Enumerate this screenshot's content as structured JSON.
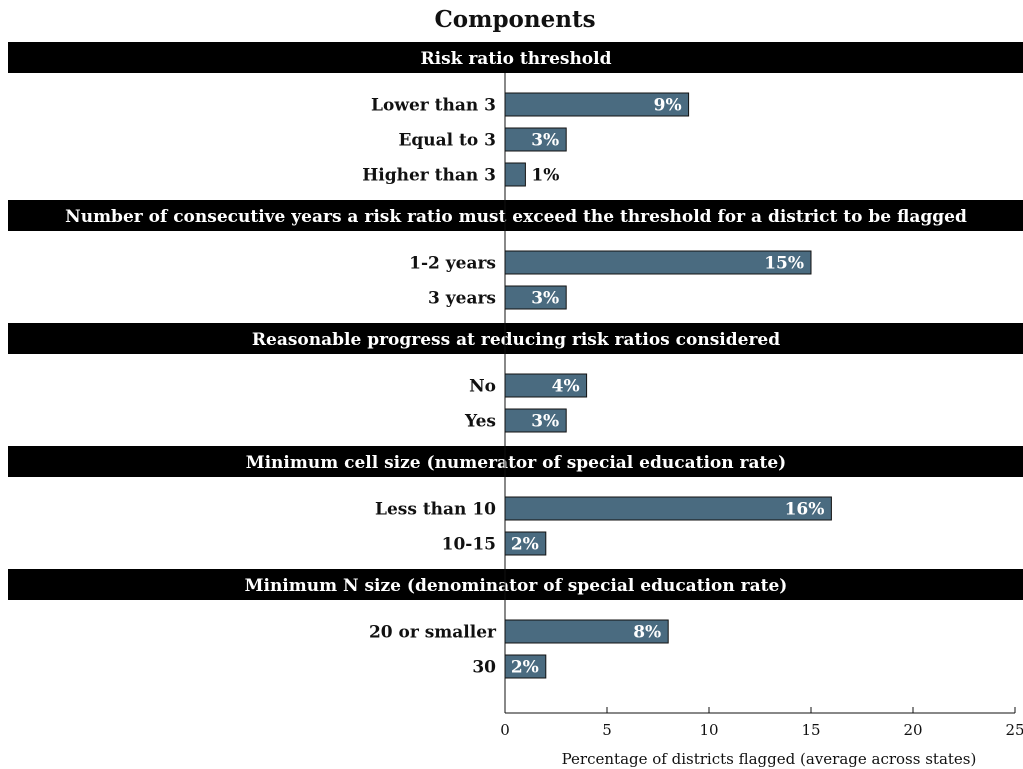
{
  "chart_data": {
    "type": "bar",
    "orientation": "horizontal",
    "title": "Components",
    "xlabel": "Percentage of districts flagged (average across states)",
    "ylabel": "",
    "xlim": [
      0,
      25
    ],
    "xticks": [
      "0",
      "5",
      "10",
      "15",
      "20",
      "25"
    ],
    "grid": false,
    "bar_color": "#4a6b80",
    "header_color": "#000000",
    "groups": [
      {
        "title": "Risk ratio threshold",
        "items": [
          {
            "label": "Lower than 3",
            "value": 9,
            "display": "9%"
          },
          {
            "label": "Equal to 3",
            "value": 3,
            "display": "3%"
          },
          {
            "label": "Higher than 3",
            "value": 1,
            "display": "1%"
          }
        ]
      },
      {
        "title": "Number of consecutive years a risk ratio must exceed the threshold for a district to be flagged",
        "items": [
          {
            "label": "1-2 years",
            "value": 15,
            "display": "15%"
          },
          {
            "label": "3 years",
            "value": 3,
            "display": "3%"
          }
        ]
      },
      {
        "title": "Reasonable progress at reducing risk ratios considered",
        "items": [
          {
            "label": "No",
            "value": 4,
            "display": "4%"
          },
          {
            "label": "Yes",
            "value": 3,
            "display": "3%"
          }
        ]
      },
      {
        "title": "Minimum cell size (numerator of special education rate)",
        "items": [
          {
            "label": "Less than 10",
            "value": 16,
            "display": "16%"
          },
          {
            "label": "10-15",
            "value": 2,
            "display": "2%"
          }
        ]
      },
      {
        "title": "Minimum N size (denominator of special education rate)",
        "items": [
          {
            "label": "20 or smaller",
            "value": 8,
            "display": "8%"
          },
          {
            "label": "30",
            "value": 2,
            "display": "2%"
          }
        ]
      }
    ]
  }
}
